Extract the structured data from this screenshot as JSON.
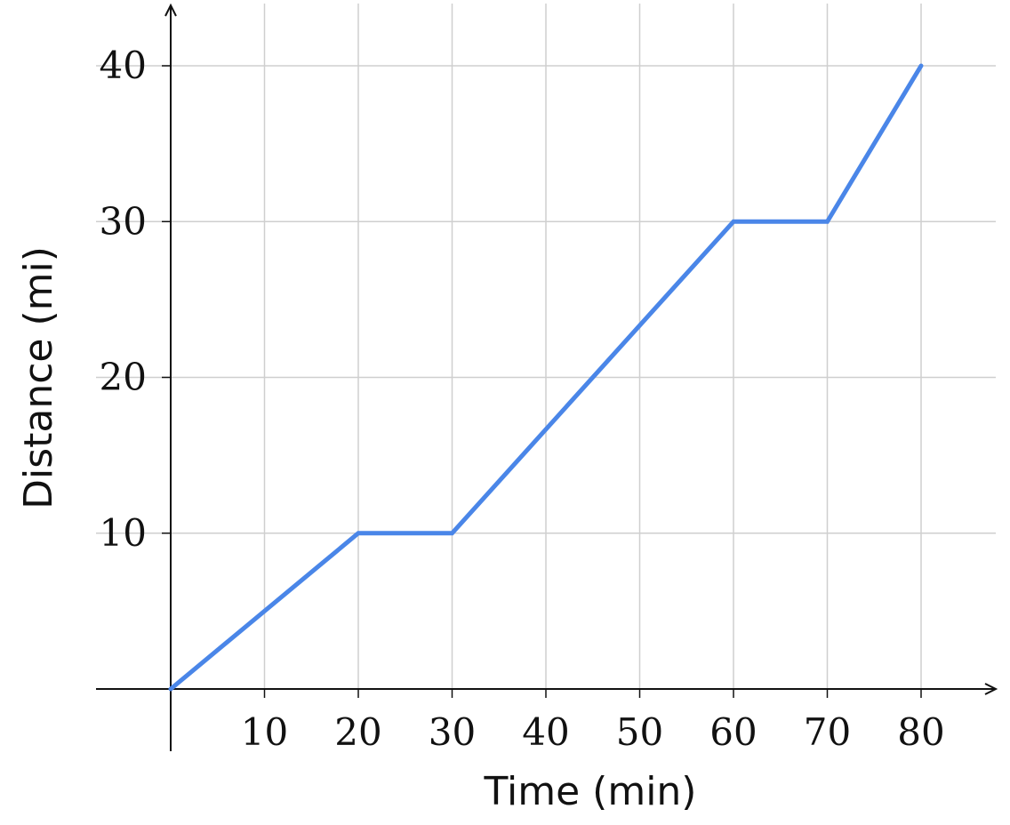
{
  "chart_data": {
    "type": "line",
    "xlabel": "Time (min)",
    "ylabel": "Distance (mi)",
    "x_ticks": [
      10,
      20,
      30,
      40,
      50,
      60,
      70,
      80
    ],
    "y_ticks": [
      10,
      20,
      30,
      40
    ],
    "xlim": [
      0,
      80
    ],
    "ylim": [
      0,
      40
    ],
    "grid": true,
    "series": [
      {
        "x": [
          0,
          20,
          30,
          60,
          70,
          80
        ],
        "y": [
          0,
          10,
          10,
          30,
          30,
          40
        ],
        "color": "#4a86e8"
      }
    ]
  }
}
